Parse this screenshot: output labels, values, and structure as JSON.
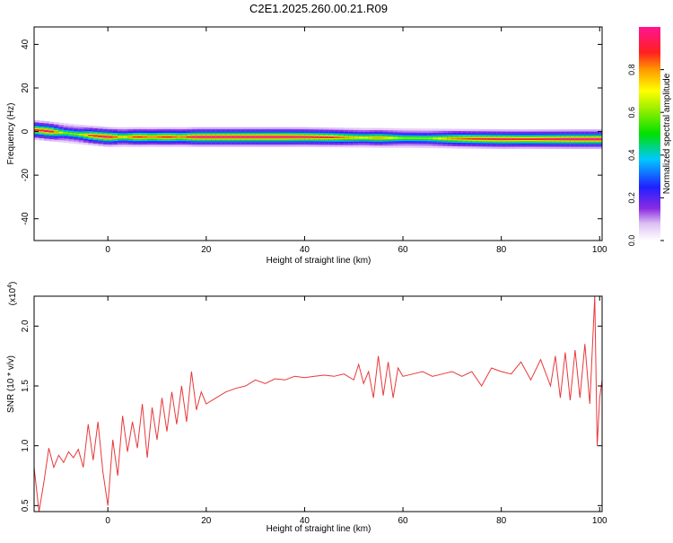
{
  "title": "C2E1.2025.260.00.21.R09",
  "colors": {
    "background": "#ffffff",
    "axis": "#000000",
    "snr_line": "#e8383a"
  },
  "chart_data": [
    {
      "type": "heatmap",
      "xlabel": "Height of straight line (km)",
      "ylabel": "Frequency (Hz)",
      "xlim": [
        -15,
        100.5
      ],
      "ylim": [
        -50,
        48
      ],
      "x_ticks": [
        0,
        20,
        40,
        60,
        80,
        100
      ],
      "y_ticks": [
        -40,
        -20,
        0,
        20,
        40
      ],
      "colorbar": {
        "label": "Normalized spectral amplitude",
        "range": [
          0,
          1
        ],
        "ticks": [
          0.0,
          0.2,
          0.4,
          0.6,
          0.8
        ],
        "colormap": "rainbow (white, violet, blue, cyan, green, yellow, orange, red, magenta)"
      },
      "band": {
        "center_frequency_hz": [
          [
            -15,
            0.8
          ],
          [
            -5,
            -1.5
          ],
          [
            0,
            -2.5
          ],
          [
            20,
            -2.5
          ],
          [
            40,
            -2.5
          ],
          [
            50,
            -2.8
          ],
          [
            60,
            -3
          ],
          [
            80,
            -3.5
          ],
          [
            100,
            -3.5
          ]
        ],
        "peak_amplitude_segments": [
          [
            -14,
            0.9
          ],
          [
            -12,
            1.0
          ],
          [
            -9,
            0.6
          ],
          [
            -6,
            0.6
          ],
          [
            -3,
            0.9
          ],
          [
            0,
            1.0
          ],
          [
            3,
            0.7
          ],
          [
            6,
            0.9
          ],
          [
            9,
            0.8
          ],
          [
            12,
            0.9
          ],
          [
            15,
            0.8
          ],
          [
            18,
            1.0
          ],
          [
            25,
            1.0
          ],
          [
            35,
            1.0
          ],
          [
            45,
            0.9
          ],
          [
            52,
            0.7
          ],
          [
            55,
            0.8
          ],
          [
            60,
            0.6
          ],
          [
            65,
            0.6
          ],
          [
            70,
            0.8
          ],
          [
            75,
            0.9
          ],
          [
            80,
            0.95
          ],
          [
            85,
            0.9
          ],
          [
            90,
            0.95
          ],
          [
            95,
            1.0
          ],
          [
            99,
            1.0
          ]
        ]
      }
    },
    {
      "type": "line",
      "xlabel": "Height of straight line (km)",
      "ylabel": "SNR (10 * v/v)",
      "y_multiplier": "(x10",
      "y_multiplier_exp": "4",
      "y_multiplier_close": ")",
      "xlim": [
        -15,
        100.5
      ],
      "ylim": [
        0.45,
        2.25
      ],
      "x_ticks": [
        0,
        20,
        40,
        60,
        80,
        100
      ],
      "y_ticks": [
        0.5,
        1.0,
        1.5,
        2.0
      ],
      "series": [
        {
          "x": [
            -15,
            -14,
            -13,
            -12,
            -11,
            -10,
            -9,
            -8,
            -7,
            -6,
            -5,
            -4,
            -3,
            -2,
            -1,
            0,
            1,
            2,
            3,
            4,
            5,
            6,
            7,
            8,
            9,
            10,
            11,
            12,
            13,
            14,
            15,
            16,
            17,
            18,
            19,
            20,
            22,
            24,
            26,
            28,
            30,
            32,
            34,
            36,
            38,
            40,
            42,
            44,
            46,
            48,
            50,
            51,
            52,
            53,
            54,
            55,
            56,
            57,
            58,
            59,
            60,
            62,
            64,
            66,
            68,
            70,
            72,
            74,
            76,
            78,
            80,
            82,
            84,
            86,
            88,
            90,
            91,
            92,
            93,
            94,
            95,
            96,
            97,
            98,
            99,
            99.5,
            100,
            100.5
          ],
          "y": [
            0.82,
            0.45,
            0.7,
            0.98,
            0.82,
            0.92,
            0.86,
            0.95,
            0.9,
            0.97,
            0.82,
            1.18,
            0.88,
            1.2,
            0.78,
            0.5,
            1.05,
            0.75,
            1.25,
            0.95,
            1.2,
            0.98,
            1.35,
            0.9,
            1.32,
            1.05,
            1.4,
            1.12,
            1.45,
            1.18,
            1.5,
            1.2,
            1.62,
            1.3,
            1.45,
            1.35,
            1.4,
            1.45,
            1.48,
            1.5,
            1.55,
            1.52,
            1.56,
            1.55,
            1.58,
            1.57,
            1.58,
            1.59,
            1.58,
            1.6,
            1.55,
            1.68,
            1.52,
            1.62,
            1.4,
            1.75,
            1.42,
            1.7,
            1.4,
            1.65,
            1.58,
            1.6,
            1.62,
            1.58,
            1.6,
            1.62,
            1.58,
            1.62,
            1.5,
            1.65,
            1.62,
            1.6,
            1.7,
            1.55,
            1.72,
            1.5,
            1.75,
            1.4,
            1.78,
            1.38,
            1.8,
            1.4,
            1.85,
            1.35,
            2.25,
            1.0,
            1.4,
            1.55
          ]
        }
      ]
    }
  ]
}
